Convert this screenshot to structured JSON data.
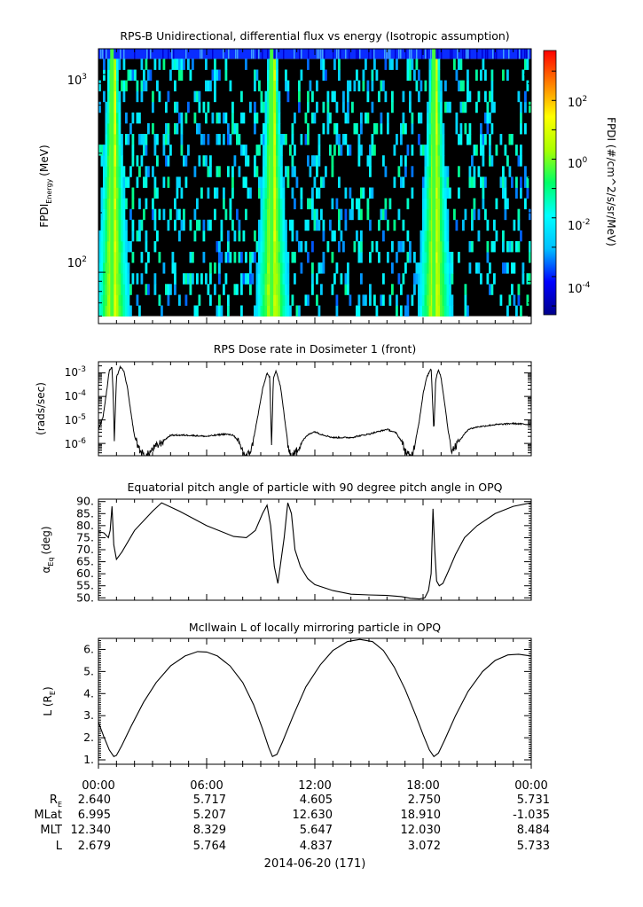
{
  "chart_data": [
    {
      "type": "heatmap",
      "title": "RPS-B  Unidirectional, differential flux vs energy (Isotropic assumption)",
      "ylabel_main": "FPDI",
      "ylabel_sub": "Energy",
      "ylabel_unit": "(MeV)",
      "yscale": "log",
      "ylim": [
        55,
        1350
      ],
      "ytick_labels": [
        {
          "base": "10",
          "exp": "3",
          "value": 1000
        },
        {
          "base": "10",
          "exp": "2",
          "value": 100
        }
      ],
      "energy_bins_top": 1200,
      "energy_bins_bottom": 60,
      "peaks_hours": [
        0.75,
        9.6,
        18.6
      ],
      "colorbar": {
        "label": "FPDI (#/cm^2/s/sr/MeV)",
        "scale": "log",
        "range_log10": [
          -5.3,
          3.7
        ],
        "tick_labels": [
          {
            "base": "10",
            "exp": "2",
            "value": 2
          },
          {
            "base": "10",
            "exp": "0",
            "value": 0
          },
          {
            "base": "10",
            "exp": "-2",
            "value": -2
          },
          {
            "base": "10",
            "exp": "-4",
            "value": -4
          }
        ],
        "colors": [
          "#00008b",
          "#0000ff",
          "#00bfff",
          "#00ffff",
          "#00ff66",
          "#aaff00",
          "#ffff00",
          "#ff8000",
          "#ff0000"
        ]
      }
    },
    {
      "type": "line",
      "title": "RPS  Dose rate in Dosimeter 1 (front)",
      "ylabel": "(rads/sec)",
      "yscale": "log",
      "ylim": [
        3e-07,
        0.003
      ],
      "ytick_labels": [
        {
          "base": "10",
          "exp": "-3",
          "value": -3
        },
        {
          "base": "10",
          "exp": "-4",
          "value": -4
        },
        {
          "base": "10",
          "exp": "-5",
          "value": -5
        },
        {
          "base": "10",
          "exp": "-6",
          "value": -6
        }
      ],
      "series": [
        {
          "x_hours": [
            0,
            0.25,
            0.45,
            0.6,
            0.75,
            0.82,
            0.88,
            1.0,
            1.2,
            1.4,
            1.6,
            1.8,
            2.0,
            2.3,
            2.6,
            3.0,
            4.0,
            5.0,
            6.0,
            7.0,
            7.5,
            7.8,
            8.0,
            8.2,
            8.5,
            8.8,
            9.1,
            9.35,
            9.5,
            9.6,
            9.7,
            9.85,
            10.1,
            10.3,
            10.5,
            10.7,
            11.0,
            11.3,
            11.6,
            11.8,
            12.0,
            12.3,
            13.0,
            14.0,
            15.0,
            16.0,
            16.5,
            16.8,
            17.0,
            17.3,
            17.5,
            17.8,
            18.0,
            18.2,
            18.45,
            18.6,
            18.7,
            18.85,
            19.0,
            19.2,
            19.4,
            19.6,
            19.9,
            20.2,
            20.5,
            21.0,
            22.0,
            23.0,
            24.0
          ],
          "y_log10": [
            -5.4,
            -4.9,
            -3.8,
            -2.9,
            -2.75,
            -4.0,
            -5.9,
            -3.2,
            -2.75,
            -2.9,
            -3.6,
            -4.7,
            -5.7,
            -6.3,
            -6.6,
            -6.25,
            -5.65,
            -5.65,
            -5.7,
            -5.6,
            -5.65,
            -6.0,
            -6.3,
            -6.6,
            -6.2,
            -5.0,
            -3.7,
            -3.0,
            -3.2,
            -6.2,
            -3.2,
            -2.9,
            -3.6,
            -4.8,
            -6.0,
            -6.6,
            -6.3,
            -5.9,
            -5.65,
            -5.55,
            -5.5,
            -5.6,
            -5.75,
            -5.75,
            -5.6,
            -5.4,
            -5.55,
            -5.9,
            -6.3,
            -6.6,
            -6.2,
            -5.0,
            -3.9,
            -3.2,
            -2.8,
            -5.5,
            -3.3,
            -2.85,
            -3.2,
            -4.3,
            -5.5,
            -6.3,
            -6.0,
            -5.7,
            -5.4,
            -5.3,
            -5.2,
            -5.15,
            -5.2
          ]
        }
      ]
    },
    {
      "type": "line",
      "title": "Equatorial pitch angle of particle with 90 degree pitch angle in OPQ",
      "ylabel": "α",
      "ylabel_sub": "Eq",
      "ylabel_unit": "(deg)",
      "ylim": [
        49,
        91
      ],
      "ytick_labels": [
        "90.",
        "85.",
        "80.",
        "75.",
        "70.",
        "65.",
        "60.",
        "55.",
        "50."
      ],
      "series": [
        {
          "x_hours": [
            0,
            0.3,
            0.55,
            0.65,
            0.75,
            0.85,
            1.0,
            1.3,
            2.0,
            3.0,
            3.5,
            4.5,
            6.0,
            7.5,
            8.2,
            8.7,
            9.1,
            9.35,
            9.55,
            9.75,
            9.95,
            10.3,
            10.5,
            10.7,
            10.9,
            11.2,
            11.6,
            12.0,
            13.0,
            14.0,
            15.0,
            16.0,
            16.8,
            17.3,
            17.8,
            18.1,
            18.3,
            18.45,
            18.55,
            18.65,
            18.75,
            18.9,
            19.1,
            19.4,
            19.8,
            20.3,
            21.0,
            22.0,
            23.0,
            24.0
          ],
          "y": [
            77.5,
            77.0,
            75.0,
            78.0,
            88.0,
            72.0,
            66.0,
            69.0,
            78.0,
            86.0,
            89.5,
            86.0,
            80.0,
            75.5,
            75.0,
            78.0,
            85.0,
            88.5,
            80.0,
            63.0,
            56.0,
            75.0,
            89.5,
            85.0,
            70.0,
            63.0,
            58.0,
            55.5,
            53.0,
            51.5,
            51.2,
            51.0,
            50.5,
            49.8,
            49.5,
            50.0,
            53.0,
            60.0,
            87.0,
            70.0,
            57.0,
            55.0,
            56.0,
            61.0,
            68.0,
            75.0,
            80.0,
            85.0,
            88.0,
            89.5
          ]
        }
      ]
    },
    {
      "type": "line",
      "title": "McIlwain L of locally mirroring particle in OPQ",
      "ylabel": "L (R",
      "ylabel_sub": "E",
      "ylabel_unit": ")",
      "ylim": [
        0.8,
        6.5
      ],
      "ytick_labels": [
        "6.",
        "5.",
        "4.",
        "3.",
        "2.",
        "1."
      ],
      "series": [
        {
          "x_hours": [
            0,
            0.3,
            0.6,
            0.85,
            1.0,
            1.3,
            1.8,
            2.5,
            3.2,
            4.0,
            4.8,
            5.5,
            6.0,
            6.6,
            7.3,
            8.0,
            8.6,
            9.1,
            9.45,
            9.65,
            9.9,
            10.2,
            10.8,
            11.5,
            12.3,
            13.0,
            13.8,
            14.5,
            15.2,
            15.8,
            16.4,
            17.0,
            17.6,
            18.0,
            18.35,
            18.6,
            18.85,
            19.2,
            19.8,
            20.5,
            21.3,
            22.0,
            22.7,
            23.3,
            24.0
          ],
          "y": [
            2.7,
            2.05,
            1.45,
            1.15,
            1.2,
            1.65,
            2.5,
            3.6,
            4.5,
            5.25,
            5.7,
            5.9,
            5.88,
            5.7,
            5.25,
            4.5,
            3.5,
            2.4,
            1.55,
            1.15,
            1.25,
            1.8,
            3.0,
            4.3,
            5.3,
            5.95,
            6.35,
            6.45,
            6.35,
            5.95,
            5.2,
            4.2,
            3.0,
            2.15,
            1.45,
            1.15,
            1.3,
            1.9,
            3.0,
            4.1,
            5.0,
            5.5,
            5.75,
            5.78,
            5.7
          ]
        }
      ]
    }
  ],
  "xaxis": {
    "tick_labels": [
      "00:00",
      "06:00",
      "12:00",
      "18:00",
      "00:00"
    ],
    "row_labels": [
      {
        "label": "R",
        "sub": "E",
        "values": [
          "2.640",
          "5.717",
          "4.605",
          "2.750",
          "5.731"
        ]
      },
      {
        "label": "MLat",
        "sub": "",
        "values": [
          "6.995",
          "5.207",
          "12.630",
          "18.910",
          "-1.035"
        ]
      },
      {
        "label": "MLT",
        "sub": "",
        "values": [
          "12.340",
          "8.329",
          "5.647",
          "12.030",
          "8.484"
        ]
      },
      {
        "label": "L",
        "sub": "",
        "values": [
          "2.679",
          "5.764",
          "4.837",
          "3.072",
          "5.733"
        ]
      }
    ],
    "date_label": "2014-06-20 (171)",
    "range_hours": [
      0,
      24
    ]
  }
}
